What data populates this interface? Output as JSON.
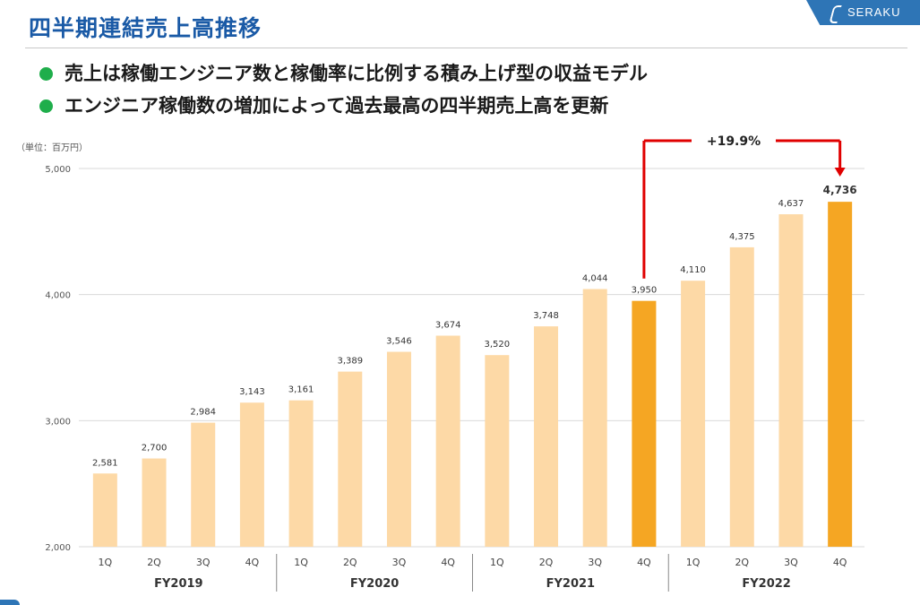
{
  "header": {
    "title": "四半期連結売上高推移",
    "logo_text": "SERAKU",
    "logo_icon": "s-logo-icon"
  },
  "bullets": [
    "売上は稼働エンジニア数と稼働率に比例する積み上げ型の収益モデル",
    "エンジニア稼働数の増加によって過去最高の四半期売上高を更新"
  ],
  "colors": {
    "title": "#1a5aa6",
    "bullet": "#1fae4b",
    "bar_light": "#fdd9a6",
    "bar_highlight": "#f5a623",
    "arrow": "#e00000"
  },
  "chart_data": {
    "type": "bar",
    "unit_label": "（単位：百万円）",
    "categories": [
      "1Q",
      "2Q",
      "3Q",
      "4Q",
      "1Q",
      "2Q",
      "3Q",
      "4Q",
      "1Q",
      "2Q",
      "3Q",
      "4Q",
      "1Q",
      "2Q",
      "3Q",
      "4Q"
    ],
    "groups": [
      {
        "label": "FY2019",
        "count": 4
      },
      {
        "label": "FY2020",
        "count": 4
      },
      {
        "label": "FY2021",
        "count": 4
      },
      {
        "label": "FY2022",
        "count": 4
      }
    ],
    "values": [
      2581,
      2700,
      2984,
      3143,
      3161,
      3389,
      3546,
      3674,
      3520,
      3748,
      4044,
      3950,
      4110,
      4375,
      4637,
      4736
    ],
    "value_labels": [
      "2,581",
      "2,700",
      "2,984",
      "3,143",
      "3,161",
      "3,389",
      "3,546",
      "3,674",
      "3,520",
      "3,748",
      "4,044",
      "3,950",
      "4,110",
      "4,375",
      "4,637",
      "4,736"
    ],
    "highlighted": [
      11,
      15
    ],
    "ylim": [
      2000,
      5000
    ],
    "yticks": [
      2000,
      3000,
      4000,
      5000
    ],
    "ytick_labels": [
      "2,000",
      "3,000",
      "4,000",
      "5,000"
    ],
    "grid": true,
    "annotation": {
      "text": "+19.9%",
      "from_index": 11,
      "to_index": 15
    }
  }
}
